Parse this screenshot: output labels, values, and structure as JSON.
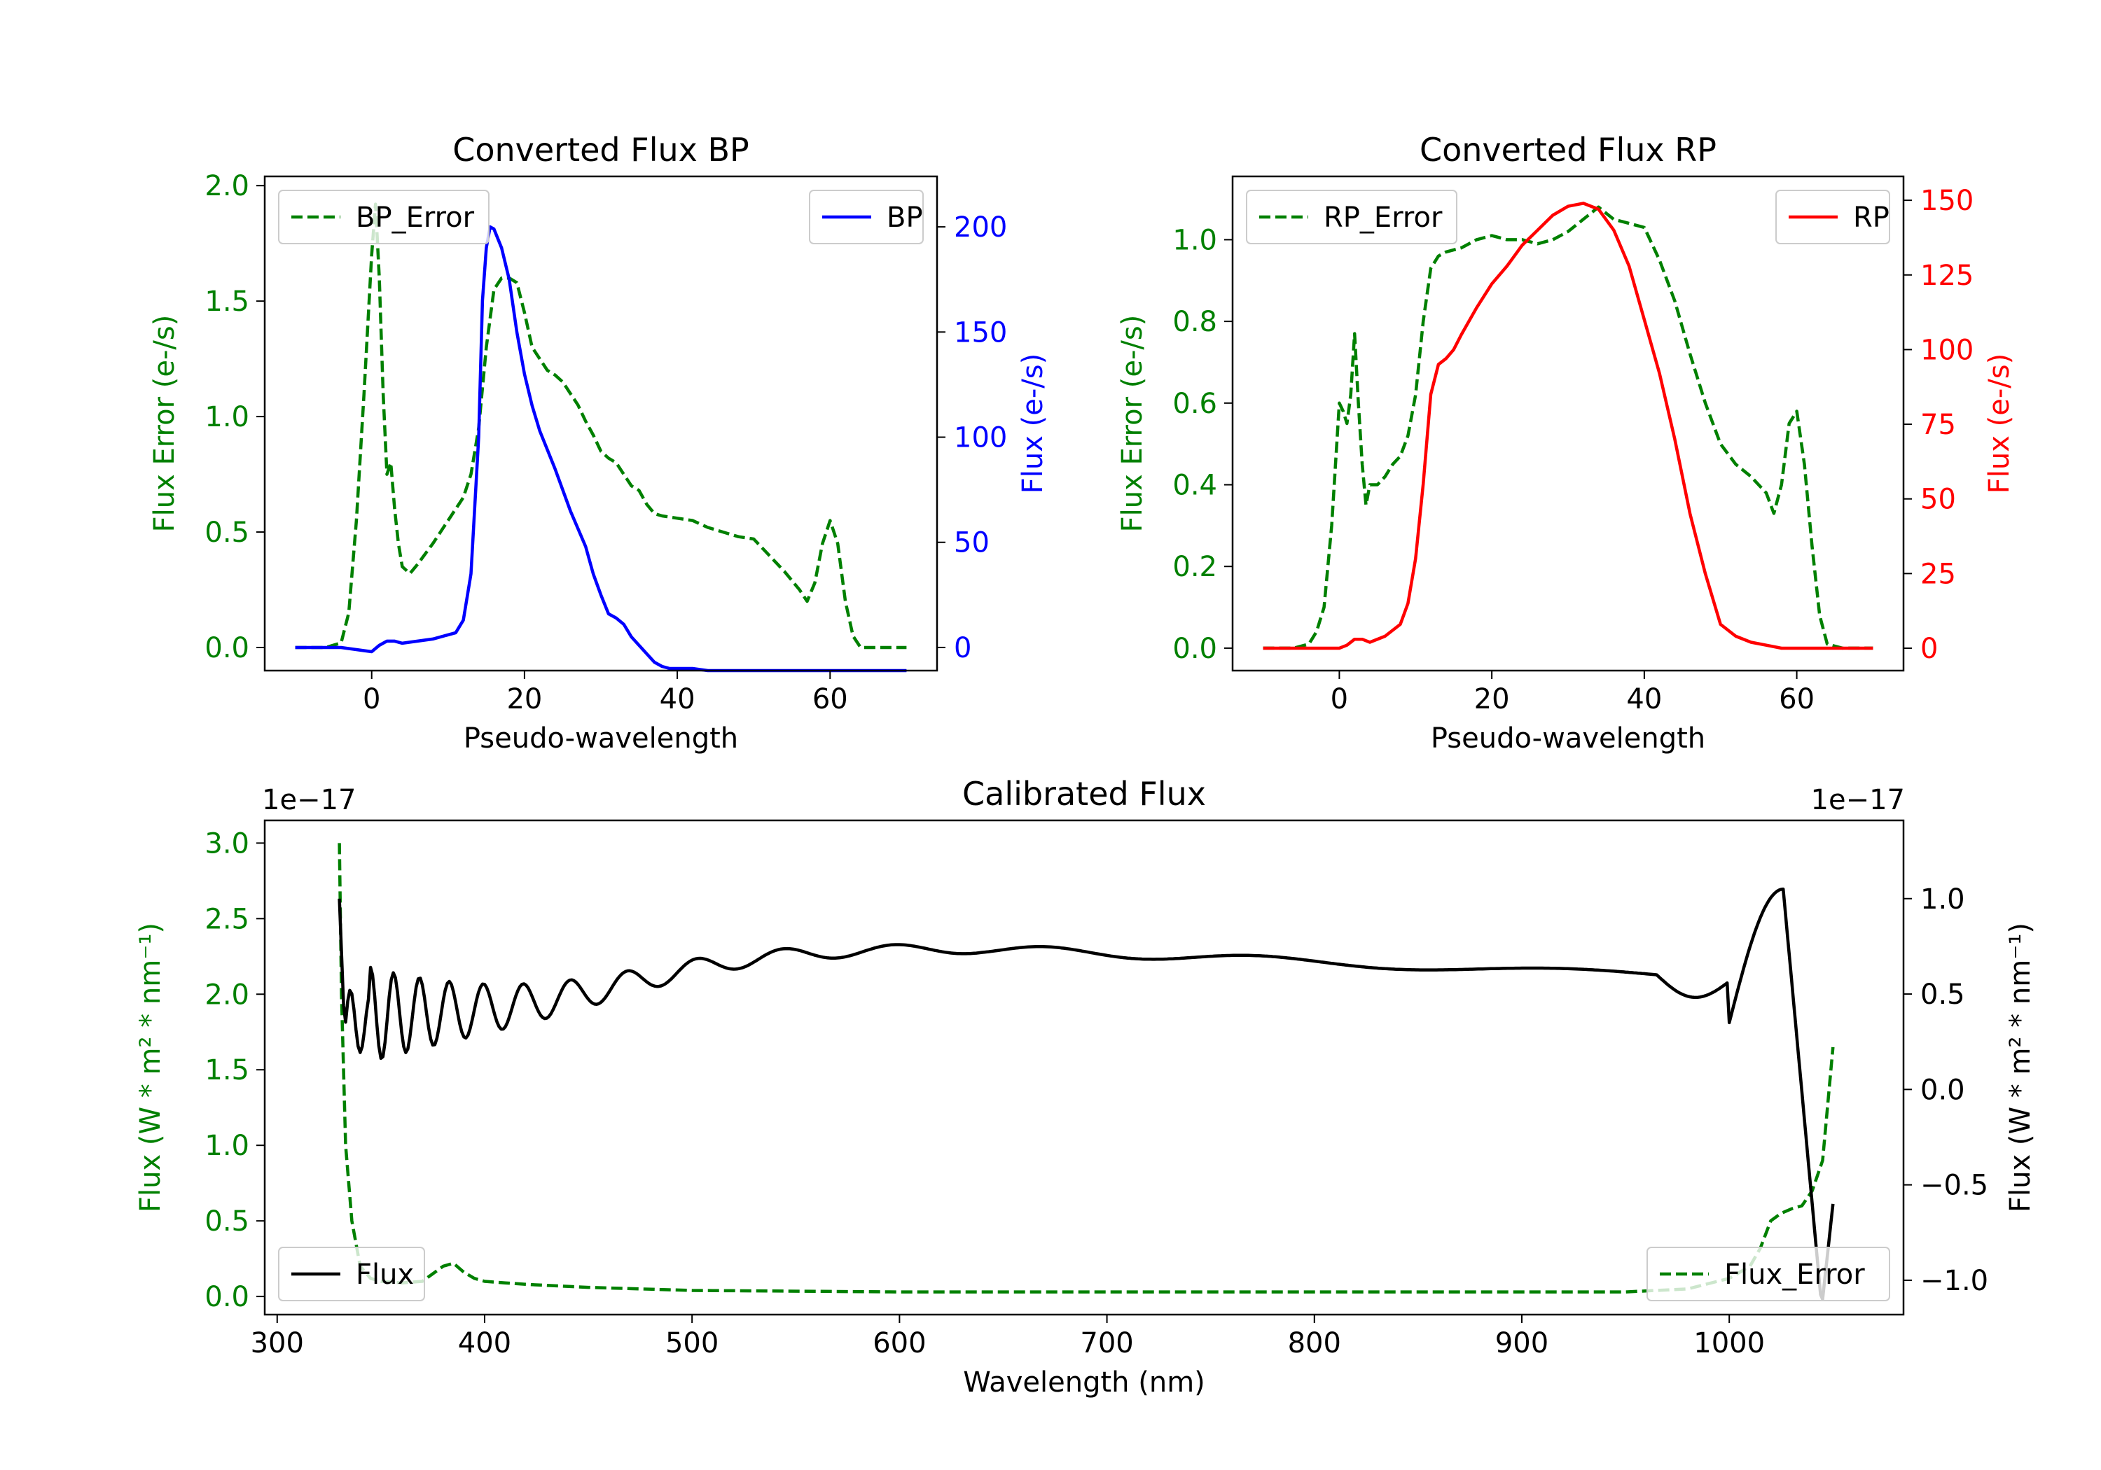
{
  "chart_data": [
    {
      "id": "bp",
      "type": "line",
      "title": "Converted Flux BP",
      "xlabel": "Pseudo-wavelength",
      "ylabel_left": "Flux Error (e-/s)",
      "ylabel_right": "Flux (e-/s)",
      "xlim": [
        -14,
        74
      ],
      "ylim_left": [
        -0.1,
        2.04
      ],
      "ylim_right": [
        -11,
        224
      ],
      "xticks": [
        0,
        20,
        40,
        60
      ],
      "yticks_left": [
        0.0,
        0.5,
        1.0,
        1.5,
        2.0
      ],
      "yticks_right": [
        0,
        50,
        100,
        150,
        200
      ],
      "series": [
        {
          "name": "BP_Error",
          "axis": "left",
          "style": "dashed",
          "color": "#008000",
          "x": [
            -10,
            -6,
            -4,
            -3,
            -2,
            -1,
            0,
            0.5,
            1,
            1.5,
            2,
            2.5,
            3,
            3.5,
            4,
            5,
            6,
            8,
            10,
            12,
            13,
            14,
            15,
            16,
            17,
            18,
            19,
            20,
            21,
            22,
            23,
            24,
            25,
            26,
            27,
            28,
            29,
            30,
            31,
            32,
            33,
            34,
            35,
            36,
            37,
            38,
            40,
            42,
            44,
            46,
            48,
            50,
            52,
            54,
            56,
            57,
            58,
            59,
            60,
            61,
            62,
            63,
            64,
            66,
            68,
            70
          ],
          "values": [
            0.0,
            0.0,
            0.02,
            0.15,
            0.55,
            1.1,
            1.7,
            1.92,
            1.6,
            1.1,
            0.75,
            0.8,
            0.6,
            0.45,
            0.35,
            0.32,
            0.36,
            0.45,
            0.55,
            0.65,
            0.75,
            0.95,
            1.3,
            1.55,
            1.6,
            1.6,
            1.58,
            1.45,
            1.3,
            1.25,
            1.2,
            1.18,
            1.15,
            1.1,
            1.05,
            0.98,
            0.92,
            0.85,
            0.82,
            0.8,
            0.75,
            0.7,
            0.68,
            0.62,
            0.58,
            0.57,
            0.56,
            0.55,
            0.52,
            0.5,
            0.48,
            0.47,
            0.4,
            0.33,
            0.25,
            0.2,
            0.28,
            0.45,
            0.55,
            0.45,
            0.2,
            0.05,
            0.0,
            0.0,
            0.0,
            0.0
          ]
        },
        {
          "name": "BP",
          "axis": "right",
          "style": "solid",
          "color": "#0000ff",
          "x": [
            -10,
            -6,
            -4,
            -2,
            0,
            1,
            2,
            3,
            4,
            6,
            8,
            10,
            11,
            12,
            13,
            14,
            14.5,
            15,
            15.5,
            16,
            17,
            18,
            19,
            20,
            21,
            22,
            24,
            26,
            28,
            29,
            30,
            31,
            32,
            33,
            34,
            36,
            37,
            38,
            39,
            40,
            42,
            44,
            46,
            48,
            50,
            52,
            54,
            56,
            58,
            60,
            62,
            64,
            66,
            68,
            70
          ],
          "values": [
            0,
            0,
            0,
            -1,
            -2,
            1,
            3,
            3,
            2,
            3,
            4,
            6,
            7,
            13,
            35,
            100,
            165,
            190,
            200,
            199,
            190,
            175,
            150,
            130,
            115,
            103,
            85,
            65,
            48,
            35,
            25,
            16,
            14,
            11,
            5,
            -3,
            -7,
            -9,
            -10,
            -10,
            -10,
            -11,
            -11,
            -11,
            -11,
            -11,
            -11,
            -11,
            -11,
            -11,
            -11,
            -11,
            -11,
            -11,
            -11
          ]
        }
      ],
      "legend": [
        {
          "label": "BP_Error",
          "position": "upper-left"
        },
        {
          "label": "BP",
          "position": "upper-right"
        }
      ]
    },
    {
      "id": "rp",
      "type": "line",
      "title": "Converted Flux RP",
      "xlabel": "Pseudo-wavelength",
      "ylabel_left": "Flux Error (e-/s)",
      "ylabel_right": "Flux (e-/s)",
      "xlim": [
        -14,
        74
      ],
      "ylim_left": [
        -0.055,
        1.155
      ],
      "ylim_right": [
        -7.5,
        158
      ],
      "xticks": [
        0,
        20,
        40,
        60
      ],
      "yticks_left": [
        0.0,
        0.2,
        0.4,
        0.6,
        0.8,
        1.0
      ],
      "yticks_right": [
        0,
        25,
        50,
        75,
        100,
        125,
        150
      ],
      "series": [
        {
          "name": "RP_Error",
          "axis": "left",
          "style": "dashed",
          "color": "#008000",
          "x": [
            -10,
            -6,
            -4,
            -3,
            -2,
            -1,
            0,
            0.5,
            1,
            1.5,
            2,
            2.5,
            3,
            3.5,
            4,
            5,
            6,
            7,
            8,
            9,
            10,
            11,
            12,
            13,
            14,
            16,
            18,
            20,
            22,
            24,
            26,
            28,
            30,
            32,
            34,
            36,
            38,
            40,
            42,
            44,
            46,
            48,
            50,
            52,
            54,
            56,
            57,
            58,
            59,
            60,
            61,
            62,
            63,
            64,
            66,
            68,
            70
          ],
          "values": [
            0.0,
            0.0,
            0.01,
            0.04,
            0.1,
            0.3,
            0.6,
            0.58,
            0.55,
            0.62,
            0.77,
            0.6,
            0.45,
            0.35,
            0.4,
            0.4,
            0.42,
            0.45,
            0.47,
            0.52,
            0.62,
            0.8,
            0.93,
            0.96,
            0.97,
            0.98,
            1.0,
            1.01,
            1.0,
            1.0,
            0.99,
            1.0,
            1.02,
            1.05,
            1.08,
            1.05,
            1.04,
            1.03,
            0.95,
            0.85,
            0.72,
            0.6,
            0.5,
            0.45,
            0.42,
            0.38,
            0.33,
            0.4,
            0.55,
            0.58,
            0.45,
            0.25,
            0.08,
            0.01,
            0.0,
            0.0,
            0.0
          ]
        },
        {
          "name": "RP",
          "axis": "right",
          "style": "solid",
          "color": "#ff0000",
          "x": [
            -10,
            -6,
            -4,
            -2,
            0,
            1,
            2,
            3,
            4,
            6,
            8,
            9,
            10,
            11,
            12,
            13,
            14,
            15,
            16,
            18,
            20,
            22,
            24,
            26,
            28,
            30,
            32,
            34,
            36,
            38,
            40,
            42,
            44,
            46,
            48,
            50,
            52,
            54,
            56,
            58,
            60,
            62,
            64,
            66,
            68,
            70
          ],
          "values": [
            0,
            0,
            0,
            0,
            0,
            1,
            3,
            3,
            2,
            4,
            8,
            15,
            30,
            55,
            85,
            95,
            97,
            100,
            105,
            114,
            122,
            128,
            135,
            140,
            145,
            148,
            149,
            147,
            140,
            128,
            110,
            92,
            70,
            45,
            25,
            8,
            4,
            2,
            1,
            0,
            0,
            0,
            0,
            0,
            0,
            0
          ]
        }
      ],
      "legend": [
        {
          "label": "RP_Error",
          "position": "upper-left"
        },
        {
          "label": "RP",
          "position": "upper-right"
        }
      ]
    },
    {
      "id": "cal",
      "type": "line",
      "title": "Calibrated Flux",
      "xlabel": "Wavelength (nm)",
      "ylabel_left": "Flux (W * m² * nm⁻¹)",
      "ylabel_right": "Flux (W * m² * nm⁻¹)",
      "offset_left": "1e−17",
      "offset_right": "1e−17",
      "xlim": [
        294,
        1084
      ],
      "ylim_left": [
        -0.12,
        3.15
      ],
      "ylim_right": [
        -1.18,
        1.41
      ],
      "xticks": [
        300,
        400,
        500,
        600,
        700,
        800,
        900,
        1000
      ],
      "yticks_left": [
        0.0,
        0.5,
        1.0,
        1.5,
        2.0,
        2.5,
        3.0
      ],
      "ytick_labels_left": [
        "0.0",
        "0.5",
        "1.0",
        "1.5",
        "2.0",
        "2.5",
        "3.0"
      ],
      "yticks_right": [
        -1.0,
        -0.5,
        0.0,
        0.5,
        1.0
      ],
      "ytick_labels_right": [
        "−1.0",
        "−0.5",
        "0.0",
        "0.5",
        "1.0"
      ],
      "series": [
        {
          "name": "Flux_Error",
          "axis": "left",
          "style": "dashed",
          "color": "#008000",
          "x": [
            330,
            331,
            333,
            336,
            340,
            345,
            350,
            360,
            370,
            380,
            385,
            390,
            395,
            400,
            410,
            420,
            450,
            500,
            600,
            700,
            800,
            900,
            950,
            980,
            1000,
            1010,
            1015,
            1020,
            1025,
            1030,
            1035,
            1040,
            1045,
            1050
          ],
          "values": [
            3.0,
            2.0,
            1.0,
            0.5,
            0.2,
            0.12,
            0.1,
            0.09,
            0.1,
            0.2,
            0.22,
            0.16,
            0.12,
            0.1,
            0.09,
            0.08,
            0.06,
            0.04,
            0.03,
            0.03,
            0.03,
            0.03,
            0.03,
            0.05,
            0.12,
            0.2,
            0.32,
            0.5,
            0.55,
            0.58,
            0.6,
            0.7,
            0.9,
            1.65
          ]
        },
        {
          "name": "Flux",
          "axis": "right",
          "style": "solid",
          "color": "#000000",
          "generator": "oscillation",
          "x_range": [
            330,
            1050
          ]
        }
      ],
      "legend": [
        {
          "label": "Flux",
          "position": "lower-left"
        },
        {
          "label": "Flux_Error",
          "position": "lower-right"
        }
      ]
    }
  ]
}
